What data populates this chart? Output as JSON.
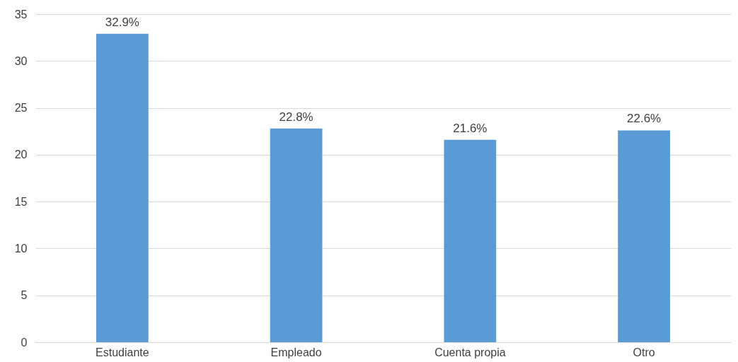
{
  "chart_data": {
    "type": "bar",
    "categories": [
      "Estudiante",
      "Empleado",
      "Cuenta propia",
      "Otro"
    ],
    "values": [
      32.9,
      22.8,
      21.6,
      22.6
    ],
    "value_labels": [
      "32.9%",
      "22.8%",
      "21.6%",
      "22.6%"
    ],
    "color": "#5b9bd5",
    "ylim": [
      0,
      35
    ],
    "yticks": [
      0,
      5,
      10,
      15,
      20,
      25,
      30,
      35
    ],
    "grid": "y"
  }
}
